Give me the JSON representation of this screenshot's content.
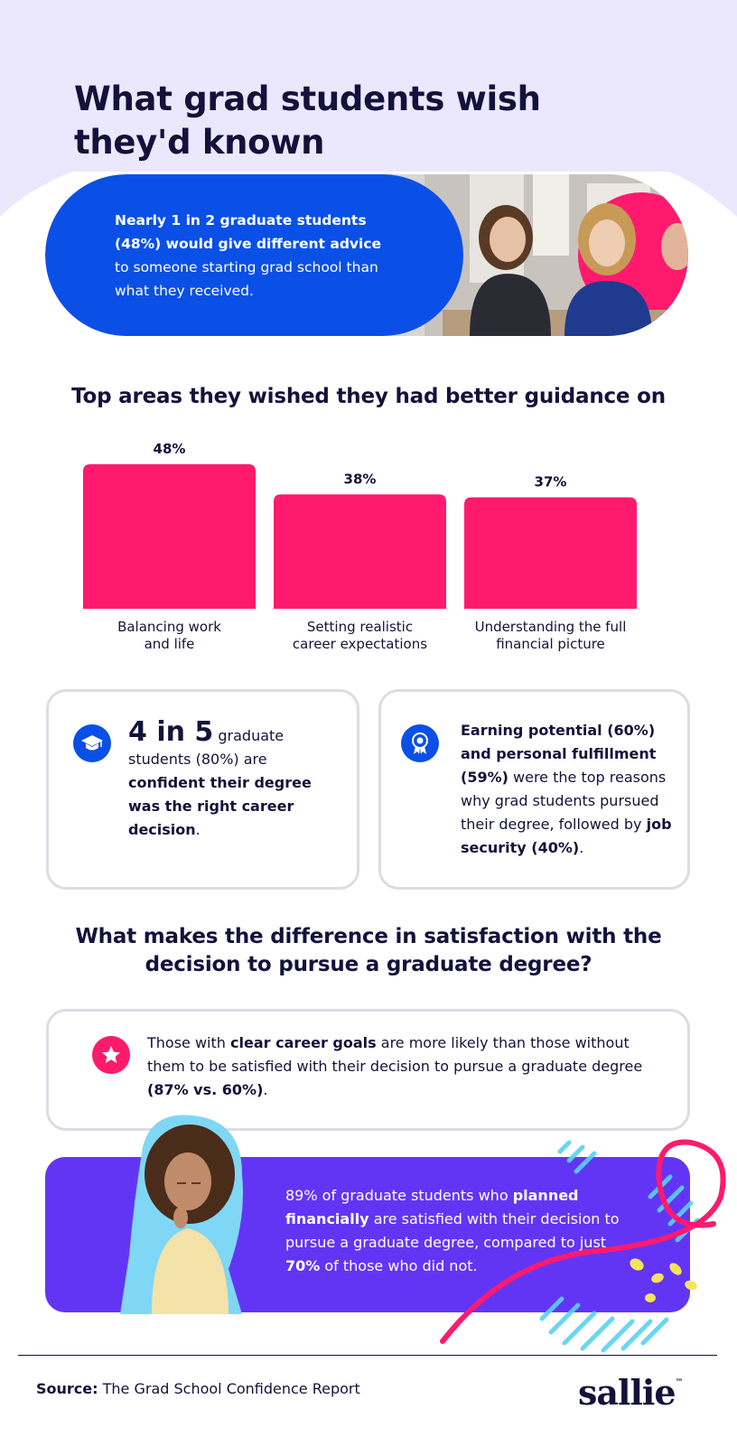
{
  "title_line1": "What grad students wish",
  "title_line2": "they'd known",
  "hero": {
    "bold_line1": "Nearly 1 in 2 graduate students",
    "bold_line2": "(48%) would give different advice",
    "rest_line1": "to someone starting grad school than",
    "rest_line2": "what they received."
  },
  "guidance_heading": "Top areas they wished they had better guidance on",
  "chart_data": {
    "type": "bar",
    "categories": [
      "Balancing work and life",
      "Setting realistic career expectations",
      "Understanding the full financial picture"
    ],
    "category_lines": [
      [
        "Balancing work",
        "and life"
      ],
      [
        "Setting realistic",
        "career expectations"
      ],
      [
        "Understanding the full",
        "financial picture"
      ]
    ],
    "values": [
      48,
      38,
      37
    ],
    "value_labels": [
      "48%",
      "38%",
      "37%"
    ],
    "color": "#ff1a6e",
    "grid": false
  },
  "card1": {
    "big": "4 in 5",
    "t1": " graduate students (80%) are ",
    "bold": "confident their degree was the right career decision",
    "t2": "."
  },
  "card2": {
    "bold1": "Earning potential (60%) and personal fulfillment (59%)",
    "t1": " were the top reasons why grad students pursued their degree, followed by ",
    "bold2": "job security (40%)",
    "t2": "."
  },
  "satisfaction_heading_line1": "What makes the difference in satisfaction with the",
  "satisfaction_heading_line2": "decision to pursue a graduate degree?",
  "card3": {
    "t1": "Those with ",
    "bold1": "clear career goals",
    "t2": " are more likely than those without them to be satisfied with their decision to pursue a graduate degree ",
    "bold2": "(87% vs. 60%)",
    "t3": "."
  },
  "purple": {
    "t1": "89% of graduate students who ",
    "bold1": "planned financially",
    "t2": " are satisfied with their decision to pursue a graduate degree, compared to just ",
    "bold2": "70%",
    "t3": " of those who did not."
  },
  "source_label": "Source:",
  "source_text": " The Grad School Confidence Report",
  "logo_text": "sallie",
  "logo_tm": "™",
  "colors": {
    "lavender": "#ebe8fd",
    "blue": "#0a50e6",
    "pink": "#ff1a6e",
    "purple": "#6235f5",
    "navy": "#14123a",
    "cyan": "#5ad2f0"
  },
  "icons": [
    "graduation-cap-icon",
    "award-ribbon-icon",
    "star-icon"
  ]
}
